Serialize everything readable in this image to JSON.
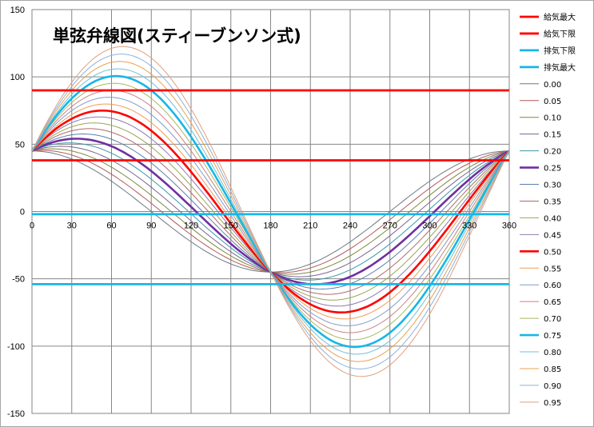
{
  "chart_data": {
    "type": "line",
    "title": "単弦弁線図(スティーブンソン式)",
    "xlabel": "",
    "ylabel": "",
    "xlim": [
      0,
      360
    ],
    "ylim": [
      -150,
      150
    ],
    "x_ticks": [
      "0",
      "30",
      "60",
      "90",
      "120",
      "150",
      "180",
      "210",
      "240",
      "270",
      "300",
      "330",
      "360"
    ],
    "y_ticks": [
      "150",
      "100",
      "50",
      "0",
      "-50",
      "-100",
      "-150"
    ],
    "grid": true,
    "legend_position": "right",
    "horizontal_lines": [
      {
        "name": "給気最大",
        "value": 90,
        "color": "#ff0000"
      },
      {
        "name": "給気下限",
        "value": 38,
        "color": "#ff0000"
      },
      {
        "name": "排気下限",
        "value": -2,
        "color": "#17b6e8"
      },
      {
        "name": "排気最大",
        "value": -54,
        "color": "#17b6e8"
      }
    ],
    "curve_model": "y = 45·cos(x) + 120·r·sin(x)",
    "series": [
      {
        "name": "0.00",
        "r": 0.0,
        "color": "#6a7a86",
        "bold": false
      },
      {
        "name": "0.05",
        "r": 0.05,
        "color": "#b05a58",
        "bold": false
      },
      {
        "name": "0.10",
        "r": 0.1,
        "color": "#7d8a3c",
        "bold": false
      },
      {
        "name": "0.15",
        "r": 0.15,
        "color": "#7a6592",
        "bold": false
      },
      {
        "name": "0.20",
        "r": 0.2,
        "color": "#3a98aa",
        "bold": false
      },
      {
        "name": "0.25",
        "r": 0.25,
        "color": "#7030a0",
        "bold": true
      },
      {
        "name": "0.30",
        "r": 0.3,
        "color": "#5b7fb0",
        "bold": false
      },
      {
        "name": "0.35",
        "r": 0.35,
        "color": "#b46a6a",
        "bold": false
      },
      {
        "name": "0.40",
        "r": 0.4,
        "color": "#98a850",
        "bold": false
      },
      {
        "name": "0.45",
        "r": 0.45,
        "color": "#8f79ae",
        "bold": false
      },
      {
        "name": "0.50",
        "r": 0.5,
        "color": "#ff0000",
        "bold": true
      },
      {
        "name": "0.55",
        "r": 0.55,
        "color": "#f29b55",
        "bold": false
      },
      {
        "name": "0.60",
        "r": 0.6,
        "color": "#7e9ac8",
        "bold": false
      },
      {
        "name": "0.65",
        "r": 0.65,
        "color": "#cc8080",
        "bold": false
      },
      {
        "name": "0.70",
        "r": 0.7,
        "color": "#a8b860",
        "bold": false
      },
      {
        "name": "0.75",
        "r": 0.75,
        "color": "#17b6e8",
        "bold": true
      },
      {
        "name": "0.80",
        "r": 0.8,
        "color": "#6fc0d8",
        "bold": false
      },
      {
        "name": "0.85",
        "r": 0.85,
        "color": "#e8a050",
        "bold": false
      },
      {
        "name": "0.90",
        "r": 0.9,
        "color": "#90b0d8",
        "bold": false
      },
      {
        "name": "0.95",
        "r": 0.95,
        "color": "#e0a080",
        "bold": false
      }
    ]
  }
}
